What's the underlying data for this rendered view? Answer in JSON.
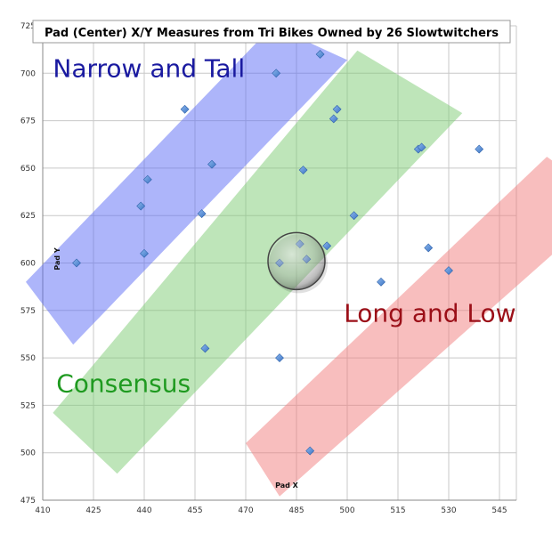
{
  "chart_data": {
    "type": "scatter",
    "title": "Pad (Center) X/Y Measures from Tri Bikes Owned by 26 Slowtwitchers",
    "xlabel": "Pad X",
    "ylabel": "Pad Y",
    "xlim": [
      410,
      550
    ],
    "ylim": [
      475,
      725
    ],
    "x_ticks": [
      410,
      425,
      440,
      455,
      470,
      485,
      500,
      515,
      530,
      545
    ],
    "x_tick_labels": [
      "410",
      "425",
      "440",
      "455",
      "470",
      "485",
      "500",
      "515",
      "530",
      "545"
    ],
    "y_ticks": [
      475,
      500,
      525,
      550,
      575,
      600,
      625,
      650,
      675,
      700,
      725
    ],
    "y_tick_labels": [
      "475",
      "500",
      "525",
      "550",
      "575",
      "600",
      "625",
      "650",
      "675",
      "700",
      "725"
    ],
    "grid": true,
    "marker_color": "#4a86d4",
    "points": [
      {
        "x": 420,
        "y": 600
      },
      {
        "x": 439,
        "y": 630
      },
      {
        "x": 440,
        "y": 605
      },
      {
        "x": 441,
        "y": 644
      },
      {
        "x": 452,
        "y": 681
      },
      {
        "x": 457,
        "y": 626
      },
      {
        "x": 458,
        "y": 555
      },
      {
        "x": 460,
        "y": 652
      },
      {
        "x": 479,
        "y": 700
      },
      {
        "x": 480,
        "y": 550
      },
      {
        "x": 480,
        "y": 600
      },
      {
        "x": 486,
        "y": 610
      },
      {
        "x": 487,
        "y": 649
      },
      {
        "x": 488,
        "y": 602
      },
      {
        "x": 489,
        "y": 501
      },
      {
        "x": 492,
        "y": 710
      },
      {
        "x": 494,
        "y": 609
      },
      {
        "x": 496,
        "y": 676
      },
      {
        "x": 497,
        "y": 681
      },
      {
        "x": 502,
        "y": 625
      },
      {
        "x": 510,
        "y": 590
      },
      {
        "x": 521,
        "y": 660
      },
      {
        "x": 522,
        "y": 661
      },
      {
        "x": 524,
        "y": 608
      },
      {
        "x": 530,
        "y": 596
      },
      {
        "x": 539,
        "y": 660
      }
    ],
    "highlight_circle": {
      "x": 485,
      "y": 601,
      "label": ""
    },
    "bands": [
      {
        "name": "narrow-and-tall",
        "label": "Narrow and Tall",
        "fill": "#5c6cf5",
        "text_color": "#1a1aa0",
        "polygon": [
          [
            405,
            590
          ],
          [
            478,
            725
          ],
          [
            500,
            707
          ],
          [
            419,
            557
          ]
        ],
        "label_anchor": [
          413,
          698
        ]
      },
      {
        "name": "consensus",
        "label": "Consensus",
        "fill": "#7dcc74",
        "text_color": "#1f9a20",
        "polygon": [
          [
            413,
            521
          ],
          [
            503,
            712
          ],
          [
            534,
            679
          ],
          [
            432,
            489
          ]
        ],
        "label_anchor": [
          414,
          532
        ]
      },
      {
        "name": "long-and-low",
        "label": "Long and Low",
        "fill": "#f27d7d",
        "text_color": "#9b0f18",
        "polygon": [
          [
            470,
            505
          ],
          [
            559,
            656
          ],
          [
            578,
            632
          ],
          [
            480,
            477
          ]
        ],
        "label_anchor": [
          499,
          569
        ]
      }
    ]
  }
}
